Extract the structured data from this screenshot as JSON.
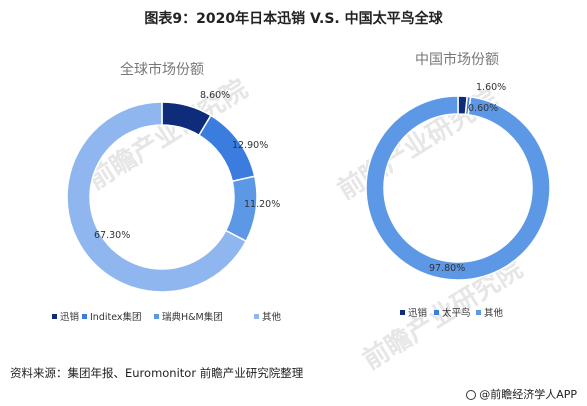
{
  "title": "图表9：2020年日本迅销 V.S. 中国太平鸟全球",
  "source": "资料来源：集团年报、Euromonitor 前瞻产业研究院整理",
  "credit": "@前瞻经济学人APP",
  "watermark": "前瞻产业研究院",
  "chart_data": [
    {
      "type": "pie",
      "donut": true,
      "title": "全球市场份额",
      "categories": [
        "迅销",
        "Inditex集团",
        "瑞典H&M集团",
        "其他"
      ],
      "values": [
        8.6,
        12.9,
        11.2,
        67.3
      ],
      "labels": [
        "8.60%",
        "12.90%",
        "11.20%",
        "67.30%"
      ],
      "colors": [
        "#0e2c7a",
        "#3a7ddf",
        "#5d98e6",
        "#8fb6ee"
      ],
      "legend": "bottom"
    },
    {
      "type": "pie",
      "donut": true,
      "title": "中国市场份额",
      "categories": [
        "迅销",
        "太平鸟",
        "其他"
      ],
      "values": [
        1.6,
        0.6,
        97.8
      ],
      "labels": [
        "1.60%",
        "0.60%",
        "97.80%"
      ],
      "colors": [
        "#0e2c7a",
        "#3a7ddf",
        "#5d98e6"
      ],
      "legend": "bottom"
    }
  ]
}
